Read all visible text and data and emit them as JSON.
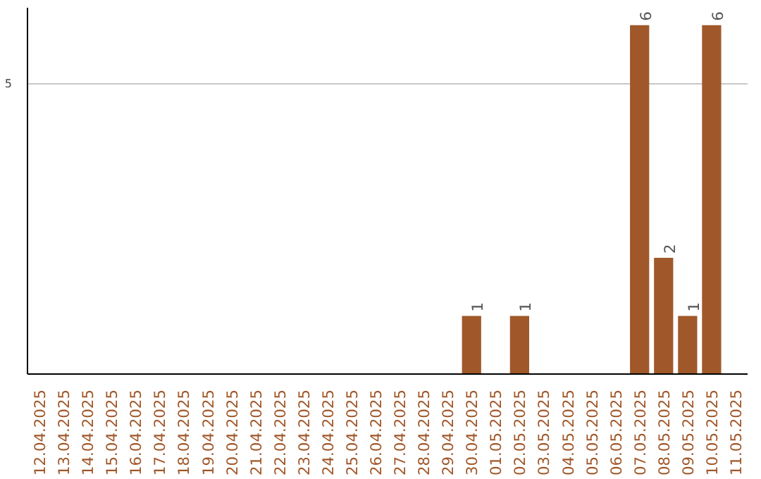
{
  "chart_data": {
    "type": "bar",
    "categories": [
      "12.04.2025",
      "13.04.2025",
      "14.04.2025",
      "15.04.2025",
      "16.04.2025",
      "17.04.2025",
      "18.04.2025",
      "19.04.2025",
      "20.04.2025",
      "21.04.2025",
      "22.04.2025",
      "23.04.2025",
      "24.04.2025",
      "25.04.2025",
      "26.04.2025",
      "27.04.2025",
      "28.04.2025",
      "29.04.2025",
      "30.04.2025",
      "01.05.2025",
      "02.05.2025",
      "03.05.2025",
      "04.05.2025",
      "05.05.2025",
      "06.05.2025",
      "07.05.2025",
      "08.05.2025",
      "09.05.2025",
      "10.05.2025",
      "11.05.2025"
    ],
    "values": [
      null,
      null,
      null,
      null,
      null,
      null,
      null,
      null,
      null,
      null,
      null,
      null,
      null,
      null,
      null,
      null,
      null,
      null,
      1,
      null,
      1,
      null,
      null,
      null,
      null,
      6,
      2,
      1,
      6,
      null
    ],
    "color": "#a0582a",
    "ylim": [
      0,
      6.3
    ],
    "yticks": [
      5
    ],
    "grid": "y",
    "data_labels": true
  }
}
